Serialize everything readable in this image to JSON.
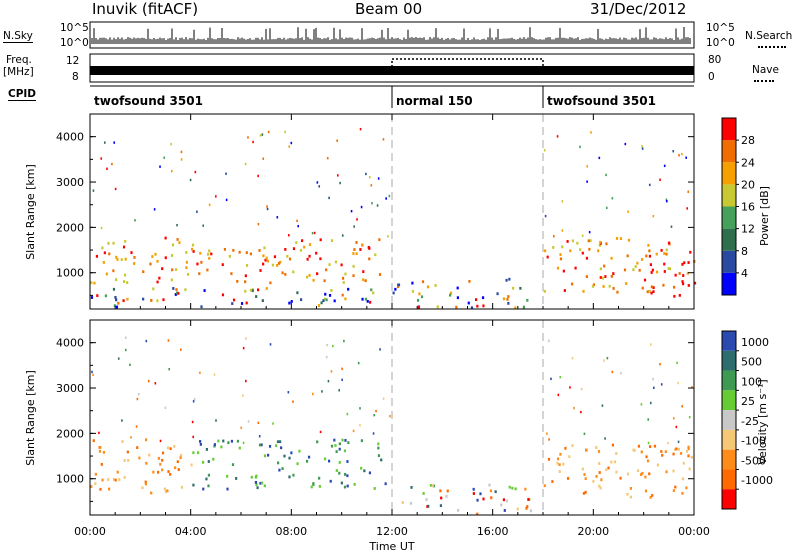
{
  "header": {
    "station": "Inuvik (fitACF)",
    "beam": "Beam 00",
    "date": "31/Dec/2012"
  },
  "top_panels": {
    "nsky_label": "N.Sky",
    "nsky_ticks": [
      "10^5",
      "10^0"
    ],
    "nsearch_label": "N.Search",
    "freq_label": "Freq.",
    "freq_unit": "[MHz]",
    "freq_ticks": [
      "12",
      "8"
    ],
    "nave_label": "Nave",
    "nave_ticks": [
      "80",
      "0"
    ],
    "cpid_label": "CPID",
    "cpid_segments": [
      {
        "name": "twofsound 3501",
        "start_h": 0,
        "end_h": 12
      },
      {
        "name": "normal 150",
        "start_h": 12,
        "end_h": 18
      },
      {
        "name": "twofsound 3501",
        "start_h": 18,
        "end_h": 24
      }
    ]
  },
  "colors": {
    "power": [
      "#0000ff",
      "#2a4aa0",
      "#2f6f4e",
      "#44a05a",
      "#c8c832",
      "#f5a000",
      "#f06e00",
      "#ff0000"
    ],
    "velocity": [
      "#2b4ab0",
      "#2e6d6e",
      "#3e9a52",
      "#66cc33",
      "#c8c8c8",
      "#f5c878",
      "#ff8c1a",
      "#ff6a00",
      "#ff0000"
    ]
  },
  "chart_data": [
    {
      "type": "heatmap",
      "title": "",
      "quantity": "Power",
      "ylabel": "Slant Range [km]",
      "xlabel": "",
      "x_ticks": [
        "00:00",
        "04:00",
        "08:00",
        "12:00",
        "16:00",
        "20:00",
        "00:00"
      ],
      "y_ticks": [
        1000,
        2000,
        3000,
        4000
      ],
      "xlim_hours": [
        0,
        24
      ],
      "ylim_km": [
        200,
        4500
      ],
      "colorbar_label": "Power [dB]",
      "colorbar_ticks": [
        4,
        8,
        12,
        16,
        20,
        24,
        28
      ],
      "colorbar_range": [
        0,
        32
      ],
      "mode_boundaries_h": [
        12,
        18
      ],
      "echo_regions": [
        {
          "t0": 0,
          "t1": 11.8,
          "r0": 800,
          "r1": 1800,
          "level": "high"
        },
        {
          "t0": 0,
          "t1": 11.8,
          "r0": 250,
          "r1": 700,
          "level": "mixed"
        },
        {
          "t0": 12,
          "t1": 17.5,
          "r0": 250,
          "r1": 900,
          "level": "mixed"
        },
        {
          "t0": 18,
          "t1": 24,
          "r0": 600,
          "r1": 1800,
          "level": "high"
        },
        {
          "t0": 22,
          "t1": 24,
          "r0": 500,
          "r1": 1300,
          "level": "max"
        }
      ]
    },
    {
      "type": "heatmap",
      "title": "",
      "quantity": "Velocity",
      "ylabel": "Slant Range [km]",
      "xlabel": "Time UT",
      "x_ticks": [
        "00:00",
        "04:00",
        "08:00",
        "12:00",
        "16:00",
        "20:00",
        "00:00"
      ],
      "y_ticks": [
        1000,
        2000,
        3000,
        4000
      ],
      "xlim_hours": [
        0,
        24
      ],
      "ylim_km": [
        200,
        4500
      ],
      "colorbar_label": "Velocity [m s⁻¹]",
      "colorbar_ticks": [
        "1000",
        "500",
        "100",
        "25",
        "-25",
        "-100",
        "-500",
        "-1000"
      ],
      "mode_boundaries_h": [
        12,
        18
      ],
      "echo_regions": [
        {
          "t0": 0,
          "t1": 4,
          "r0": 700,
          "r1": 1900,
          "level": "negative"
        },
        {
          "t0": 4,
          "t1": 11.8,
          "r0": 800,
          "r1": 1900,
          "level": "positive"
        },
        {
          "t0": 12,
          "t1": 17.5,
          "r0": 250,
          "r1": 900,
          "level": "mixed"
        },
        {
          "t0": 18,
          "t1": 24,
          "r0": 600,
          "r1": 1800,
          "level": "negative"
        }
      ]
    }
  ]
}
